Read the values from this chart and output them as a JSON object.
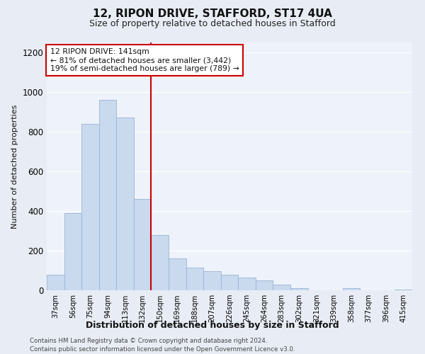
{
  "title": "12, RIPON DRIVE, STAFFORD, ST17 4UA",
  "subtitle": "Size of property relative to detached houses in Stafford",
  "xlabel": "Distribution of detached houses by size in Stafford",
  "ylabel": "Number of detached properties",
  "categories": [
    "37sqm",
    "56sqm",
    "75sqm",
    "94sqm",
    "113sqm",
    "132sqm",
    "150sqm",
    "169sqm",
    "188sqm",
    "207sqm",
    "226sqm",
    "245sqm",
    "264sqm",
    "283sqm",
    "302sqm",
    "321sqm",
    "339sqm",
    "358sqm",
    "377sqm",
    "396sqm",
    "415sqm"
  ],
  "values": [
    80,
    390,
    840,
    960,
    870,
    460,
    280,
    160,
    115,
    95,
    80,
    65,
    50,
    30,
    10,
    0,
    0,
    12,
    0,
    0,
    5
  ],
  "bar_color": "#c9d9ee",
  "bar_edge_color": "#9ab5d5",
  "vline_x_index": 5.5,
  "vline_color": "#cc0000",
  "annotation_line1": "12 RIPON DRIVE: 141sqm",
  "annotation_line2": "← 81% of detached houses are smaller (3,442)",
  "annotation_line3": "19% of semi-detached houses are larger (789) →",
  "annotation_box_color": "#ffffff",
  "annotation_box_edge_color": "#cc0000",
  "ylim": [
    0,
    1250
  ],
  "yticks": [
    0,
    200,
    400,
    600,
    800,
    1000,
    1200
  ],
  "footer_line1": "Contains HM Land Registry data © Crown copyright and database right 2024.",
  "footer_line2": "Contains public sector information licensed under the Open Government Licence v3.0.",
  "bg_color": "#e8edf5",
  "plot_bg_color": "#eef2fa"
}
